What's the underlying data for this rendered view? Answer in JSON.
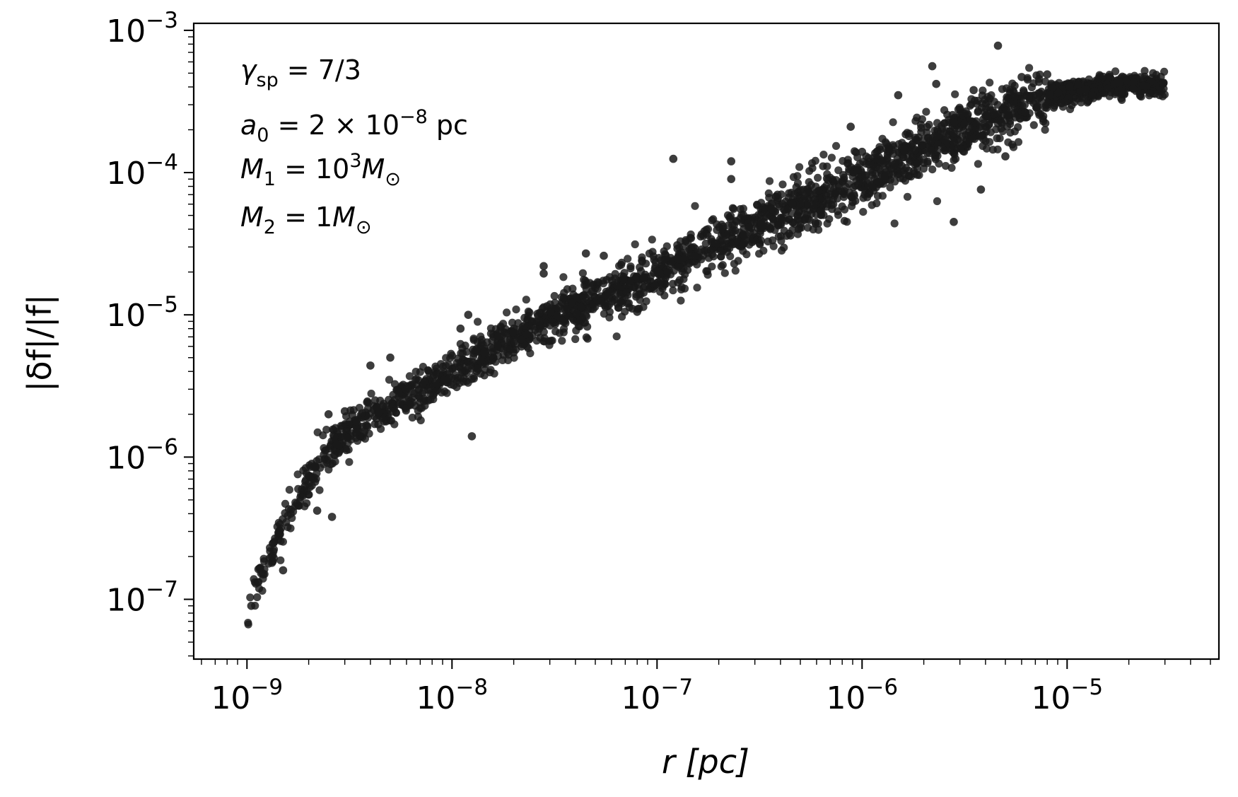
{
  "chart_data": {
    "type": "scatter",
    "xlabel": "r [pc]",
    "ylabel": "|δf|/|f|",
    "xscale": "log",
    "yscale": "log",
    "xlim": [
      5.5e-10,
      5.5e-05
    ],
    "ylim": [
      3.8e-08,
      0.00112
    ],
    "grid": false,
    "legend": "none",
    "marker_color": "#1a1a1a",
    "x_ticks": [
      {
        "value": 1e-09,
        "exp": "−9"
      },
      {
        "value": 1e-08,
        "exp": "−8"
      },
      {
        "value": 1e-07,
        "exp": "−7"
      },
      {
        "value": 1e-06,
        "exp": "−6"
      },
      {
        "value": 1e-05,
        "exp": "−5"
      }
    ],
    "y_ticks": [
      {
        "value": 1e-07,
        "exp": "−7"
      },
      {
        "value": 1e-06,
        "exp": "−6"
      },
      {
        "value": 1e-05,
        "exp": "−5"
      },
      {
        "value": 0.0001,
        "exp": "−4"
      },
      {
        "value": 0.001,
        "exp": "−3"
      }
    ],
    "tick_base": "10",
    "annotations": [
      {
        "lines": [
          "γsp = 7/3"
        ]
      },
      {
        "lines": [
          "a0 = 2 × 10−8 pc"
        ]
      },
      {
        "lines": [
          "M1 = 10³M⊙"
        ]
      },
      {
        "lines": [
          "M2 = 1M⊙"
        ]
      }
    ],
    "trend": [
      [
        1e-09,
        6e-08
      ],
      [
        1.1e-09,
        1.2e-07
      ],
      [
        1.3e-09,
        2e-07
      ],
      [
        1.6e-09,
        4e-07
      ],
      [
        2e-09,
        7e-07
      ],
      [
        2.5e-09,
        1.1e-06
      ],
      [
        3e-09,
        1.4e-06
      ],
      [
        5e-09,
        2.3e-06
      ],
      [
        1e-08,
        4e-06
      ],
      [
        2e-08,
        7e-06
      ],
      [
        5e-08,
        1.3e-05
      ],
      [
        1e-07,
        2e-05
      ],
      [
        3e-07,
        4.2e-05
      ],
      [
        1e-06,
        9e-05
      ],
      [
        3e-06,
        0.0002
      ],
      [
        1e-05,
        0.00037
      ],
      [
        1.5e-05,
        0.00041
      ],
      [
        3e-05,
        0.00042
      ]
    ],
    "outliers": [
      [
        4.6e-06,
        0.00078
      ],
      [
        2.2e-06,
        0.00056
      ],
      [
        1.2e-07,
        0.000125
      ],
      [
        2.3e-07,
        0.00012
      ],
      [
        2.3e-07,
        9e-05
      ],
      [
        8.8e-07,
        0.00021
      ],
      [
        9e-07,
        6.2e-05
      ],
      [
        2.8e-06,
        4.5e-05
      ],
      [
        3.8e-06,
        7.6e-05
      ],
      [
        2.8e-08,
        2.2e-05
      ],
      [
        2.8e-08,
        1.95e-05
      ],
      [
        1.25e-08,
        1.4e-06
      ],
      [
        2.6e-09,
        3.8e-07
      ],
      [
        1.2e-08,
        1e-05
      ],
      [
        1.1e-08,
        8e-06
      ],
      [
        5e-09,
        5e-06
      ],
      [
        4e-09,
        4.4e-06
      ],
      [
        2.5e-09,
        2e-06
      ],
      [
        2.7e-09,
        1.6e-06
      ],
      [
        3e-09,
        2.1e-06
      ],
      [
        8e-08,
        1.05e-05
      ],
      [
        5.5e-08,
        2.6e-05
      ],
      [
        4.5e-08,
        2.7e-05
      ],
      [
        3.5e-06,
        0.00038
      ],
      [
        2.3e-06,
        0.00042
      ],
      [
        1.5e-06,
        0.00035
      ],
      [
        6e-06,
        0.00047
      ],
      [
        8e-06,
        0.00049
      ],
      [
        1.8e-05,
        0.00043
      ],
      [
        5e-06,
        0.00013
      ],
      [
        1e-06,
        0.00014
      ],
      [
        1.2e-09,
        1.5e-07
      ],
      [
        1.5e-09,
        1.6e-07
      ],
      [
        1.35e-09,
        2.5e-07
      ],
      [
        1.05e-09,
        9e-08
      ],
      [
        2.2e-09,
        4.2e-07
      ]
    ],
    "n_points": 2600,
    "scatter_spread_dex": 0.07
  }
}
